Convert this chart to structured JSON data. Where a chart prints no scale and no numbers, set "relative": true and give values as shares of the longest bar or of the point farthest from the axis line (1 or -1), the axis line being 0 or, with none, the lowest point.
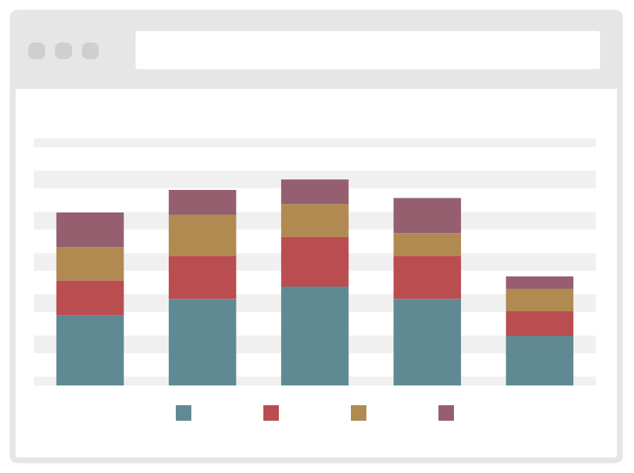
{
  "chart_data": {
    "type": "bar",
    "stacked": true,
    "relative": true,
    "categories": [
      null,
      null,
      null,
      null,
      null
    ],
    "series": [
      {
        "color": "#5f8a93",
        "values": [
          0.34,
          0.42,
          0.48,
          0.42,
          0.24
        ]
      },
      {
        "color": "#b94d50",
        "values": [
          0.17,
          0.21,
          0.24,
          0.21,
          0.12
        ]
      },
      {
        "color": "#b08a50",
        "values": [
          0.16,
          0.2,
          0.16,
          0.11,
          0.11
        ]
      },
      {
        "color": "#955f70",
        "values": [
          0.17,
          0.12,
          0.12,
          0.17,
          0.06
        ]
      }
    ],
    "grid": "y"
  }
}
